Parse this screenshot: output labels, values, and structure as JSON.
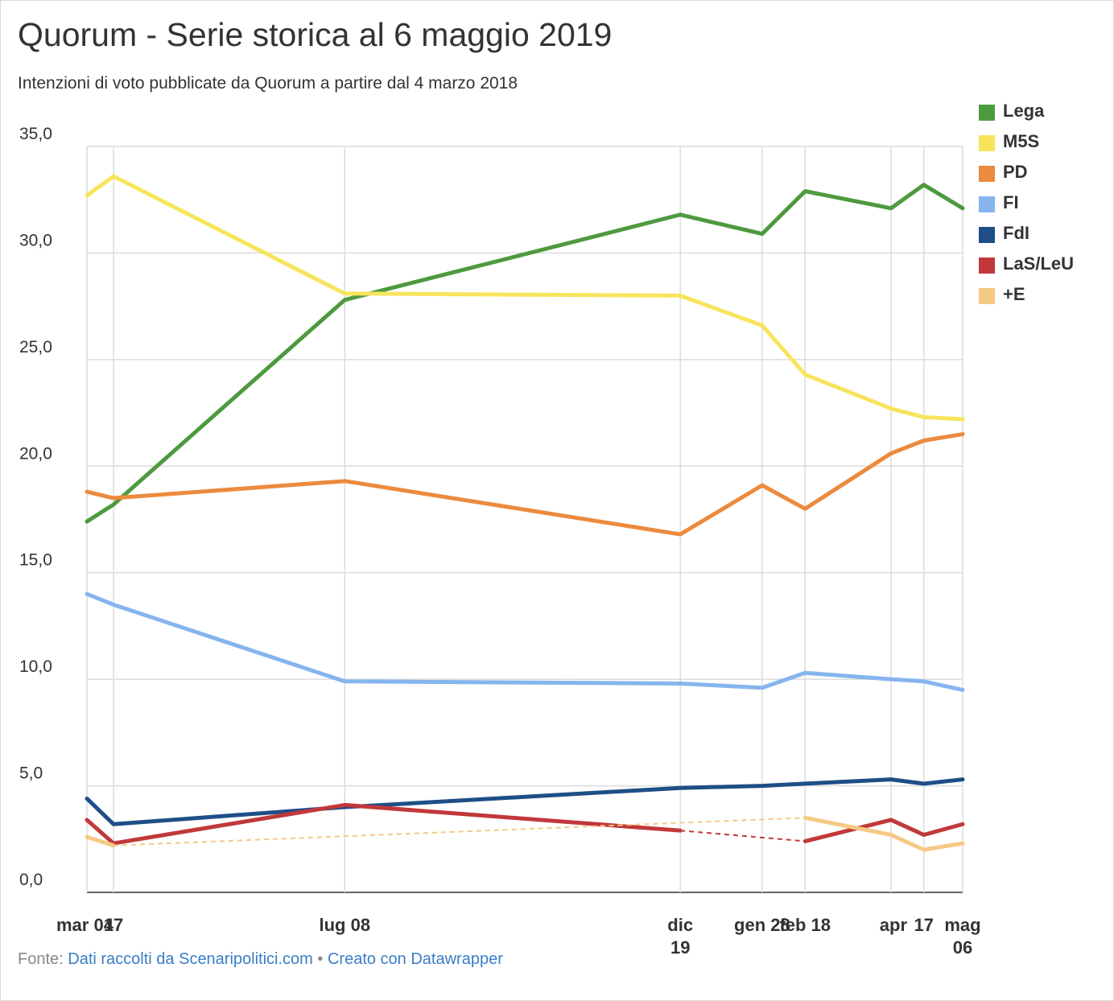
{
  "title": "Quorum - Serie storica al 6 maggio 2019",
  "subtitle": "Intenzioni di voto pubblicate da Quorum a partire dal 4 marzo 2018",
  "footer": {
    "source_prefix": "Fonte:",
    "source_link": "Dati raccolti da Scenaripolitici.com",
    "separator": "•",
    "created_link": "Creato con Datawrapper"
  },
  "chart_data": {
    "type": "line",
    "title": "Quorum - Serie storica al 6 maggio 2019",
    "subtitle": "Intenzioni di voto pubblicate da Quorum a partire dal 4 marzo 2018",
    "x": [
      "2018-03-04",
      "2018-03-17",
      "2018-07-08",
      "2018-12-19",
      "2019-01-28",
      "2019-02-18",
      "2019-04-01",
      "2019-04-17",
      "2019-05-06"
    ],
    "x_tick_labels": [
      {
        "x": "2018-03-04",
        "lines": [
          "mar 04"
        ]
      },
      {
        "x": "2018-03-17",
        "lines": [
          "17"
        ]
      },
      {
        "x": "2018-07-08",
        "lines": [
          "lug 08"
        ]
      },
      {
        "x": "2018-12-19",
        "lines": [
          "dic",
          "19"
        ]
      },
      {
        "x": "2019-01-28",
        "lines": [
          "gen 28"
        ]
      },
      {
        "x": "2019-02-18",
        "lines": [
          "feb 18"
        ]
      },
      {
        "x": "2019-04-01",
        "lines": [
          "apr"
        ]
      },
      {
        "x": "2019-04-17",
        "lines": [
          "17"
        ]
      },
      {
        "x": "2019-05-06",
        "lines": [
          "mag",
          "06"
        ]
      }
    ],
    "y_ticks": [
      "0,0",
      "5,0",
      "10,0",
      "15,0",
      "20,0",
      "25,0",
      "30,0",
      "35,0"
    ],
    "ylim": [
      0,
      35
    ],
    "grid": true,
    "legend_position": "right",
    "series": [
      {
        "name": "Lega",
        "color": "#4e9a3f",
        "values": [
          17.4,
          18.2,
          27.8,
          31.8,
          30.9,
          32.9,
          32.1,
          33.2,
          32.1
        ]
      },
      {
        "name": "M5S",
        "color": "#f8e45c",
        "values": [
          32.7,
          33.6,
          28.1,
          28.0,
          26.6,
          24.3,
          22.7,
          22.3,
          22.2
        ]
      },
      {
        "name": "PD",
        "color": "#ec8a3d",
        "values": [
          18.8,
          18.5,
          19.3,
          16.8,
          19.1,
          18.0,
          20.6,
          21.2,
          21.5
        ]
      },
      {
        "name": "FI",
        "color": "#86b5ee",
        "values": [
          14.0,
          13.5,
          9.9,
          9.8,
          9.6,
          10.3,
          10.0,
          9.9,
          9.5
        ]
      },
      {
        "name": "FdI",
        "color": "#1f4e87",
        "values": [
          4.4,
          3.2,
          4.0,
          4.9,
          5.0,
          5.1,
          5.3,
          5.1,
          5.3
        ]
      },
      {
        "name": "LaS/LeU",
        "color": "#c1383a",
        "values": [
          3.4,
          2.3,
          4.1,
          2.9,
          null,
          2.4,
          3.4,
          2.7,
          3.2
        ]
      },
      {
        "name": "+E",
        "color": "#f6c984",
        "values": [
          2.6,
          2.2,
          null,
          null,
          null,
          3.5,
          2.7,
          2.0,
          2.3
        ]
      }
    ]
  }
}
